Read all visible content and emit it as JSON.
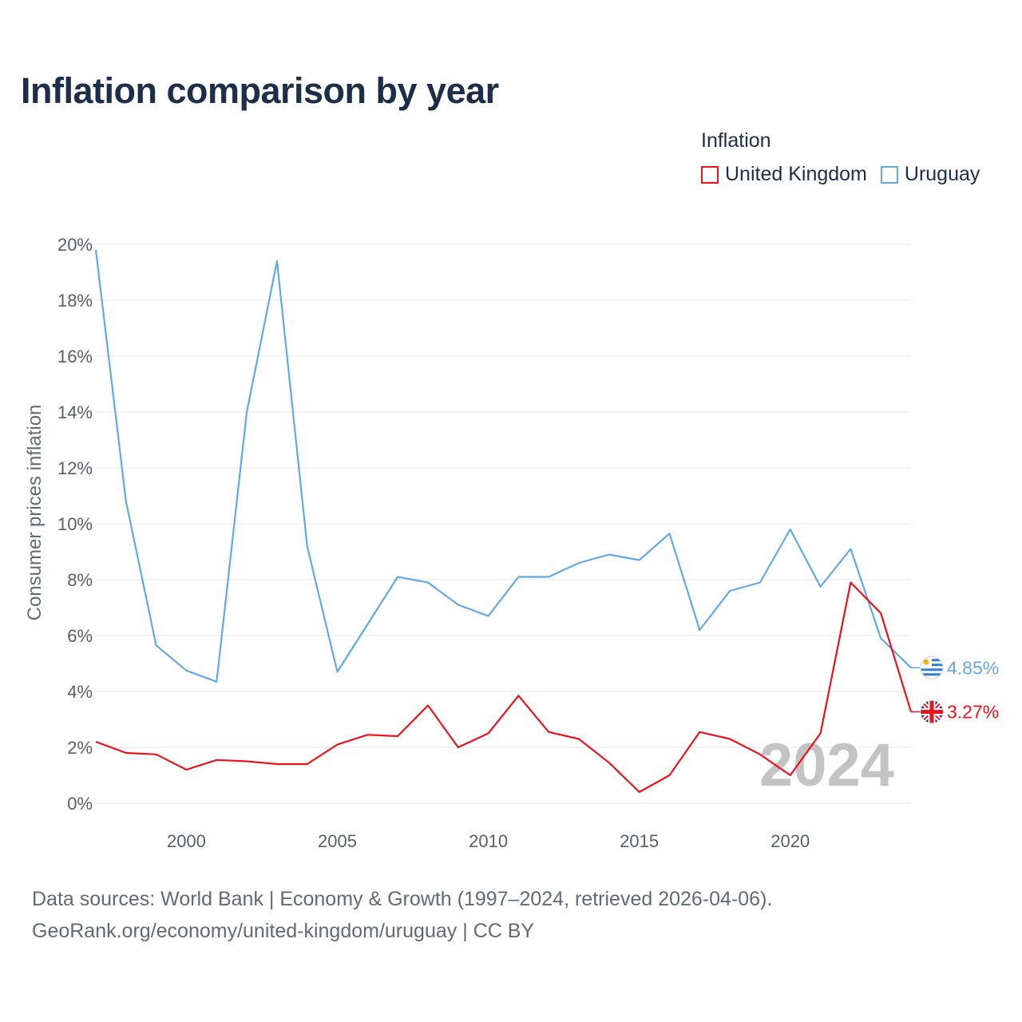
{
  "chart_data": {
    "type": "line",
    "title": "Inflation comparison by year",
    "legend_title": "Inflation",
    "ylabel": "Consumer prices inflation",
    "xlabel": "",
    "ylim": [
      0,
      20
    ],
    "yticks": [
      0,
      2,
      4,
      6,
      8,
      10,
      12,
      14,
      16,
      18,
      20
    ],
    "ytick_labels": [
      "0%",
      "2%",
      "4%",
      "6%",
      "8%",
      "10%",
      "12%",
      "14%",
      "16%",
      "18%",
      "20%"
    ],
    "xlim": [
      1997,
      2024
    ],
    "xticks": [
      2000,
      2005,
      2010,
      2015,
      2020
    ],
    "xtick_labels": [
      "2000",
      "2005",
      "2010",
      "2015",
      "2020"
    ],
    "grid": true,
    "year_watermark": "2024",
    "x": [
      1997,
      1998,
      1999,
      2000,
      2001,
      2002,
      2003,
      2004,
      2005,
      2006,
      2007,
      2008,
      2009,
      2010,
      2011,
      2012,
      2013,
      2014,
      2015,
      2016,
      2017,
      2018,
      2019,
      2020,
      2021,
      2022,
      2023,
      2024
    ],
    "series": [
      {
        "name": "United Kingdom",
        "color": "#e8131c",
        "values": [
          2.2,
          1.8,
          1.75,
          1.2,
          1.55,
          1.5,
          1.4,
          1.4,
          2.1,
          2.45,
          2.4,
          3.5,
          2.0,
          2.5,
          3.85,
          2.55,
          2.3,
          1.45,
          0.4,
          1.0,
          2.55,
          2.3,
          1.75,
          1.0,
          2.5,
          7.9,
          6.8,
          3.27
        ],
        "end_label": "3.27%",
        "flag_icon": "uk-flag-icon"
      },
      {
        "name": "Uruguay",
        "color": "#62a8e4",
        "values": [
          19.8,
          10.8,
          5.65,
          4.75,
          4.35,
          14.0,
          19.4,
          9.2,
          4.7,
          6.4,
          8.1,
          7.9,
          7.1,
          6.7,
          8.1,
          8.1,
          8.6,
          8.9,
          8.7,
          9.65,
          6.2,
          7.6,
          7.9,
          9.8,
          7.75,
          9.1,
          5.9,
          4.85
        ],
        "end_label": "4.85%",
        "flag_icon": "uruguay-flag-icon"
      }
    ]
  },
  "footer": {
    "line1": "Data sources: World Bank | Economy & Growth (1997–2024, retrieved 2026-04-06).",
    "line2": "GeoRank.org/economy/united-kingdom/uruguay | CC BY"
  }
}
